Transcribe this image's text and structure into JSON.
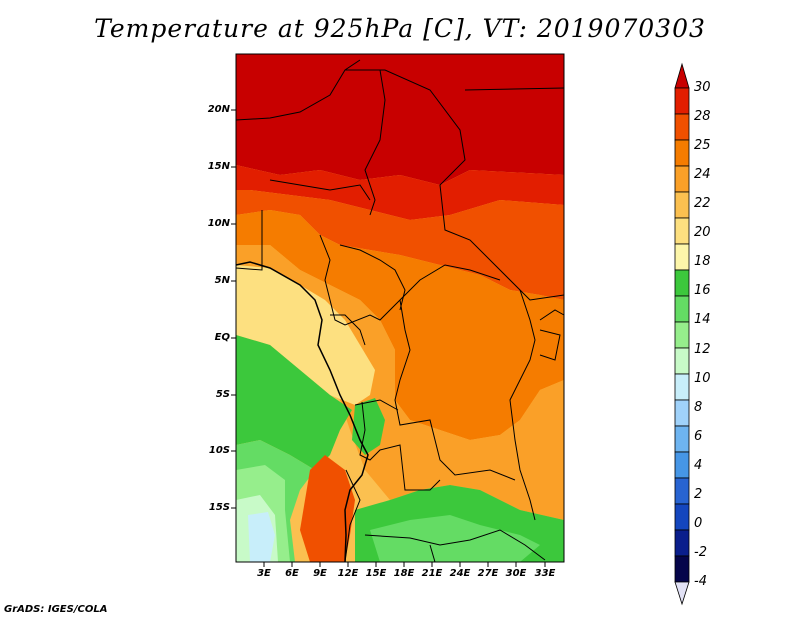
{
  "title": "Temperature at 925hPa [C], VT: 2019070303",
  "credit": "GrADS: IGES/COLA",
  "map": {
    "lat_labels": [
      "20N",
      "15N",
      "10N",
      "5N",
      "EQ",
      "5S",
      "10S",
      "15S"
    ],
    "lon_labels": [
      "3E",
      "6E",
      "9E",
      "12E",
      "15E",
      "18E",
      "21E",
      "24E",
      "27E",
      "30E",
      "33E"
    ]
  },
  "colorbar": {
    "labels": [
      "30",
      "28",
      "25",
      "24",
      "22",
      "20",
      "18",
      "16",
      "14",
      "12",
      "10",
      "8",
      "6",
      "4",
      "2",
      "0",
      "-2",
      "-4"
    ],
    "colors": [
      "#c80000",
      "#e21e00",
      "#f05000",
      "#f57c00",
      "#faa028",
      "#fbc050",
      "#fde080",
      "#fdf6aa",
      "#3cc83c",
      "#64dc64",
      "#96ee8c",
      "#c8fac8",
      "#c8eefa",
      "#a0d2fa",
      "#6eb4f0",
      "#4696e6",
      "#2864d2",
      "#1446be",
      "#0a1e8c",
      "#05054b",
      "#e1e1f5"
    ]
  }
}
